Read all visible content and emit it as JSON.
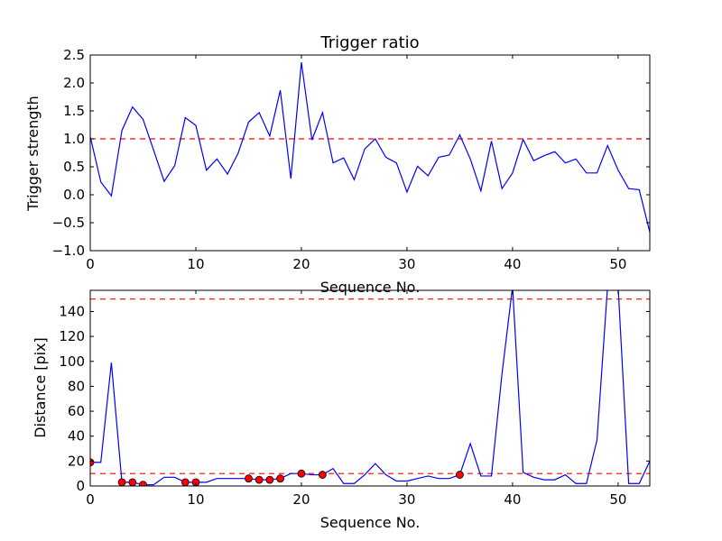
{
  "chart_data": [
    {
      "type": "line",
      "title": "Trigger ratio",
      "xlabel": "Sequence No.",
      "ylabel": "Trigger strength",
      "xlim": [
        0,
        53
      ],
      "ylim": [
        -1.0,
        2.5
      ],
      "xticks": [
        0,
        10,
        20,
        30,
        40,
        50
      ],
      "xtick_labels": [
        "0",
        "10",
        "20",
        "30",
        "40",
        "50"
      ],
      "yticks": [
        -1.0,
        -0.5,
        0.0,
        0.5,
        1.0,
        1.5,
        2.0,
        2.5
      ],
      "ytick_labels": [
        "−1.0",
        "−0.5",
        "0.0",
        "0.5",
        "1.0",
        "1.5",
        "2.0",
        "2.5"
      ],
      "grid": false,
      "colors": {
        "line": "#0000ff",
        "threshold": "#ff0000"
      },
      "thresholds": [
        1.0
      ],
      "series": [
        {
          "x": [
            0,
            1,
            2,
            3,
            4,
            5,
            6,
            7,
            8,
            9,
            10,
            11,
            12,
            13,
            14,
            15,
            16,
            17,
            18,
            19,
            20,
            21,
            22,
            23,
            24,
            25,
            26,
            27,
            28,
            29,
            30,
            31,
            32,
            33,
            34,
            35,
            36,
            37,
            38,
            39,
            40,
            41,
            42,
            43,
            44,
            45,
            46,
            47,
            48,
            49,
            50,
            51,
            52,
            53
          ],
          "values": [
            1.04,
            0.23,
            -0.02,
            1.15,
            1.57,
            1.35,
            0.8,
            0.24,
            0.52,
            1.38,
            1.24,
            0.44,
            0.64,
            0.37,
            0.74,
            1.3,
            1.47,
            1.05,
            1.87,
            0.29,
            2.37,
            0.98,
            1.47,
            0.57,
            0.66,
            0.27,
            0.82,
            1.0,
            0.67,
            0.57,
            0.05,
            0.51,
            0.34,
            0.67,
            0.71,
            1.07,
            0.64,
            0.07,
            0.96,
            0.11,
            0.39,
            0.99,
            0.61,
            0.7,
            0.77,
            0.57,
            0.64,
            0.39,
            0.39,
            0.88,
            0.44,
            0.11,
            0.09,
            -0.67
          ]
        }
      ]
    },
    {
      "type": "line",
      "title": "",
      "xlabel": "Sequence No.",
      "ylabel": "Distance [pix]",
      "xlim": [
        0,
        53
      ],
      "ylim": [
        0,
        157
      ],
      "xticks": [
        0,
        10,
        20,
        30,
        40,
        50
      ],
      "xtick_labels": [
        "0",
        "10",
        "20",
        "30",
        "40",
        "50"
      ],
      "yticks": [
        0,
        20,
        40,
        60,
        80,
        100,
        120,
        140
      ],
      "ytick_labels": [
        "0",
        "20",
        "40",
        "60",
        "80",
        "100",
        "120",
        "140"
      ],
      "grid": false,
      "colors": {
        "line": "#0000ff",
        "threshold": "#ff0000",
        "marker": "#ff0000"
      },
      "thresholds": [
        150,
        10
      ],
      "series": [
        {
          "x": [
            0,
            1,
            2,
            3,
            4,
            5,
            6,
            7,
            8,
            9,
            10,
            11,
            12,
            13,
            14,
            15,
            16,
            17,
            18,
            19,
            20,
            21,
            22,
            23,
            24,
            25,
            26,
            27,
            28,
            29,
            30,
            31,
            32,
            33,
            34,
            35,
            36,
            37,
            38,
            39,
            40,
            41,
            42,
            43,
            44,
            45,
            46,
            47,
            48,
            49,
            50,
            51,
            52,
            53
          ],
          "values": [
            19,
            19,
            99,
            3,
            3,
            1,
            1,
            7,
            7,
            3,
            3,
            3,
            6,
            6,
            6,
            6,
            5,
            5,
            6,
            10,
            10,
            9,
            9,
            14,
            2,
            2,
            9,
            18,
            9,
            4,
            4,
            6,
            8,
            6,
            6,
            9,
            34,
            8,
            8,
            90,
            160,
            11,
            7,
            5,
            5,
            9,
            2,
            2,
            37,
            160,
            160,
            2,
            2,
            20
          ]
        },
        {
          "x": [
            0,
            3,
            4,
            5,
            9,
            10,
            15,
            16,
            17,
            18,
            20,
            22,
            35
          ],
          "values": [
            19,
            3,
            3,
            1,
            3,
            3,
            6,
            5,
            5,
            6,
            10,
            9,
            9
          ]
        }
      ]
    }
  ]
}
